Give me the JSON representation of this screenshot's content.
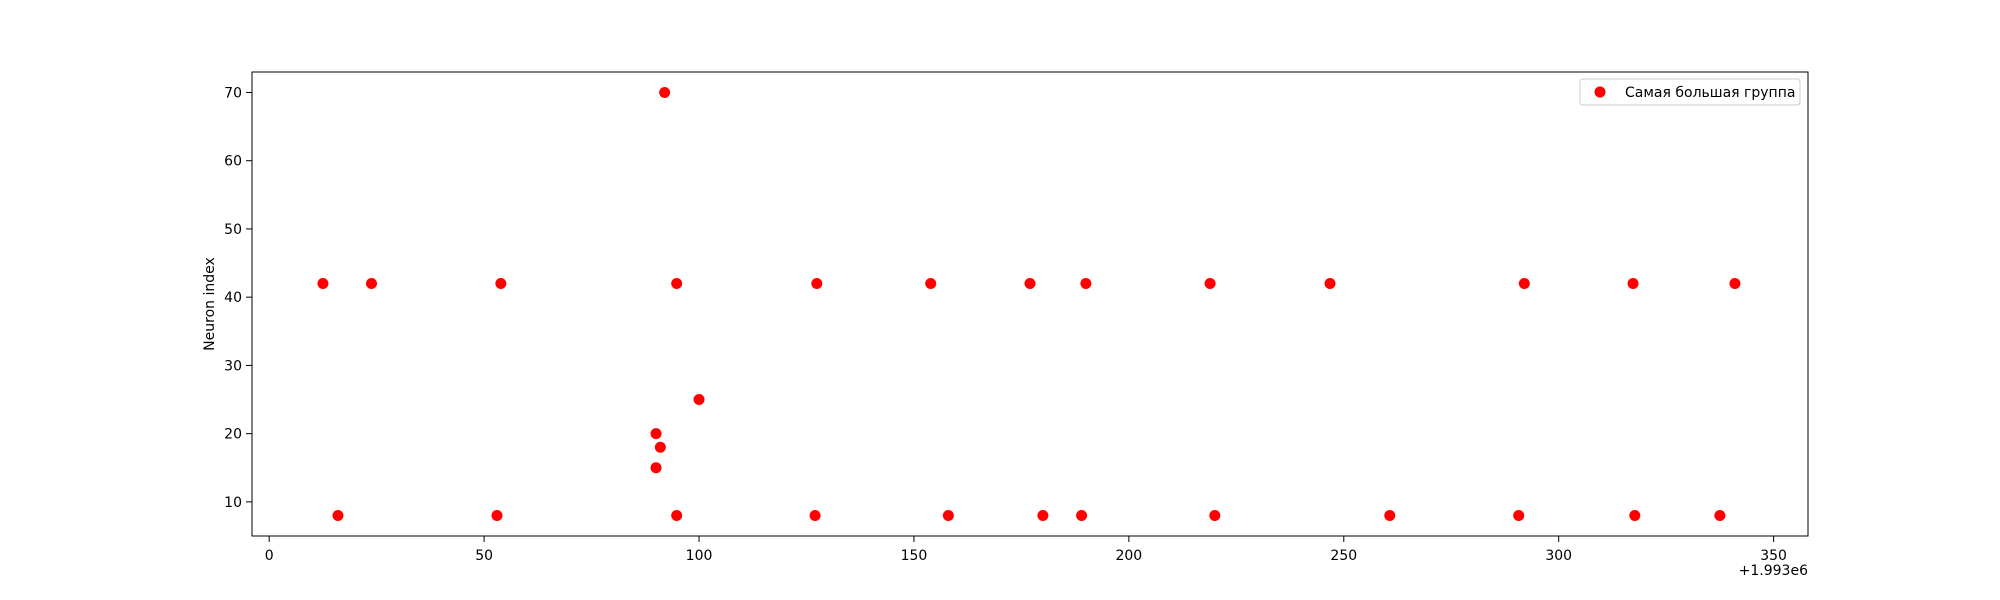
{
  "chart_data": {
    "type": "scatter",
    "title": "",
    "xlabel": "",
    "ylabel": "Neuron index",
    "x_offset_label": "+1.993e6",
    "xlim": [
      -4,
      358
    ],
    "ylim": [
      5,
      73
    ],
    "xticks": [
      0,
      50,
      100,
      150,
      200,
      250,
      300,
      350
    ],
    "yticks": [
      10,
      20,
      30,
      40,
      50,
      60,
      70
    ],
    "grid": false,
    "legend_position": "top-right",
    "series": [
      {
        "name": "Самая большая группа",
        "color": "#ff0000",
        "points": [
          [
            12.5,
            42
          ],
          [
            23.8,
            42
          ],
          [
            53.9,
            42
          ],
          [
            94.8,
            42
          ],
          [
            127.4,
            42
          ],
          [
            153.9,
            42
          ],
          [
            177.0,
            42
          ],
          [
            190.0,
            42
          ],
          [
            218.9,
            42
          ],
          [
            246.8,
            42
          ],
          [
            292.0,
            42
          ],
          [
            317.3,
            42
          ],
          [
            341.0,
            42
          ],
          [
            16.0,
            8
          ],
          [
            53.0,
            8
          ],
          [
            94.8,
            8
          ],
          [
            127.0,
            8
          ],
          [
            158.0,
            8
          ],
          [
            180.0,
            8
          ],
          [
            189.0,
            8
          ],
          [
            220.0,
            8
          ],
          [
            260.7,
            8
          ],
          [
            290.7,
            8
          ],
          [
            317.7,
            8
          ],
          [
            337.5,
            8
          ],
          [
            90.0,
            20
          ],
          [
            91.0,
            18
          ],
          [
            90.0,
            15
          ],
          [
            100.0,
            25
          ],
          [
            92.0,
            70
          ]
        ]
      }
    ]
  }
}
